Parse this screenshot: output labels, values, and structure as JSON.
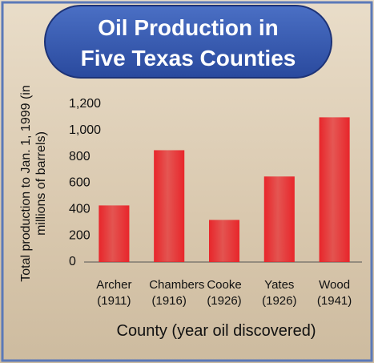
{
  "chart_data": {
    "type": "bar",
    "title": "Oil Production in Five Texas Counties",
    "ylabel": "Total production to Jan. 1, 1999 (in millions of barrels)",
    "xlabel": "County (year oil discovered)",
    "categories": [
      "Archer (1911)",
      "Chambers (1916)",
      "Cooke (1926)",
      "Yates (1926)",
      "Wood (1941)"
    ],
    "values": [
      430,
      850,
      320,
      650,
      1100
    ],
    "color": "#e8262b",
    "ylim": [
      0,
      1200
    ],
    "yticks": [
      0,
      200,
      400,
      600,
      800,
      {
        "value": 1000,
        "label": "1,000"
      },
      {
        "value": 1200,
        "label": "1,200"
      }
    ],
    "grid": false
  }
}
